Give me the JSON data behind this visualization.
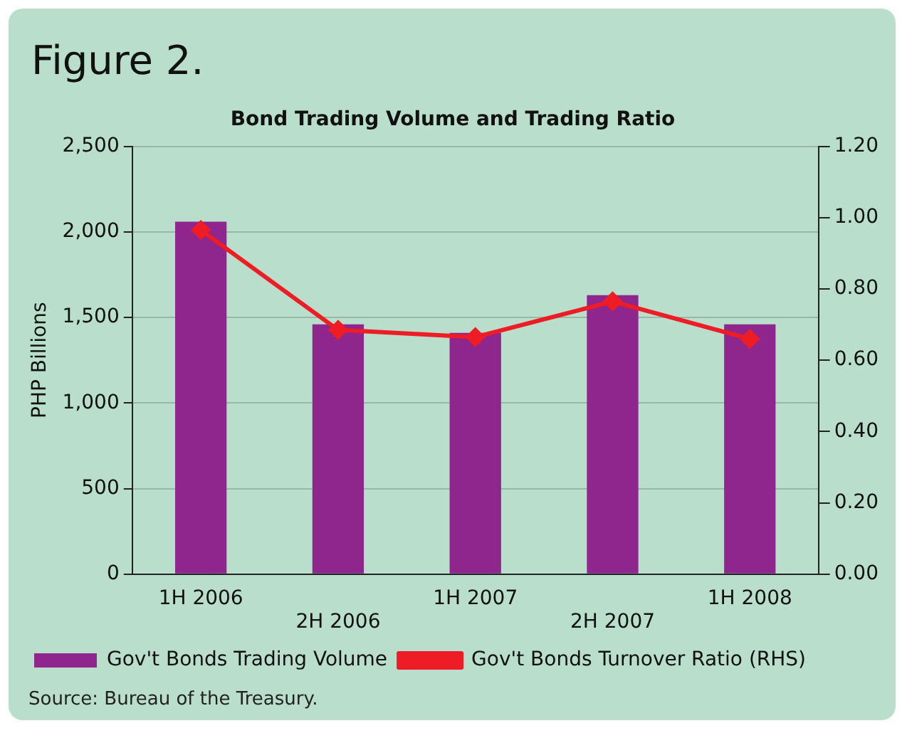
{
  "chart_data": {
    "type": "bar",
    "title": "Figure 2.",
    "subtitle": "Bond Trading Volume and Trading Ratio",
    "ylabel": "PHP Billions",
    "categories": [
      "1H 2006",
      "2H 2006",
      "1H 2007",
      "2H 2007",
      "1H 2008"
    ],
    "series": [
      {
        "name": "Gov't Bonds Trading Volume",
        "color": "#8e268d",
        "values": [
          2060,
          1460,
          1410,
          1630,
          1460
        ]
      },
      {
        "name": "Gov't Bonds Turnover Ratio (RHS)",
        "type": "line",
        "axis": "y2",
        "color": "#ee1c25",
        "marker": "diamond",
        "values": [
          0.965,
          0.685,
          0.665,
          0.765,
          0.66
        ]
      }
    ],
    "ylim": [
      0,
      2500
    ],
    "yticks": [
      {
        "value": 0,
        "label": "0"
      },
      {
        "value": 500,
        "label": "500"
      },
      {
        "value": 1000,
        "label": "1,000"
      },
      {
        "value": 1500,
        "label": "1,500"
      },
      {
        "value": 2000,
        "label": "2,000"
      },
      {
        "value": 2500,
        "label": "2,500"
      }
    ],
    "y2lim": [
      0,
      1.2
    ],
    "y2ticks": [
      {
        "value": 0,
        "label": "0.00"
      },
      {
        "value": 0.2,
        "label": "0.20"
      },
      {
        "value": 0.4,
        "label": "0.40"
      },
      {
        "value": 0.6,
        "label": "0.60"
      },
      {
        "value": 0.8,
        "label": "0.80"
      },
      {
        "value": 1,
        "label": "1.00"
      },
      {
        "value": 1.2,
        "label": "1.20"
      }
    ],
    "grid": "y",
    "legend": "bottom",
    "annotations": [
      "Source: Bureau of the Treasury."
    ]
  }
}
